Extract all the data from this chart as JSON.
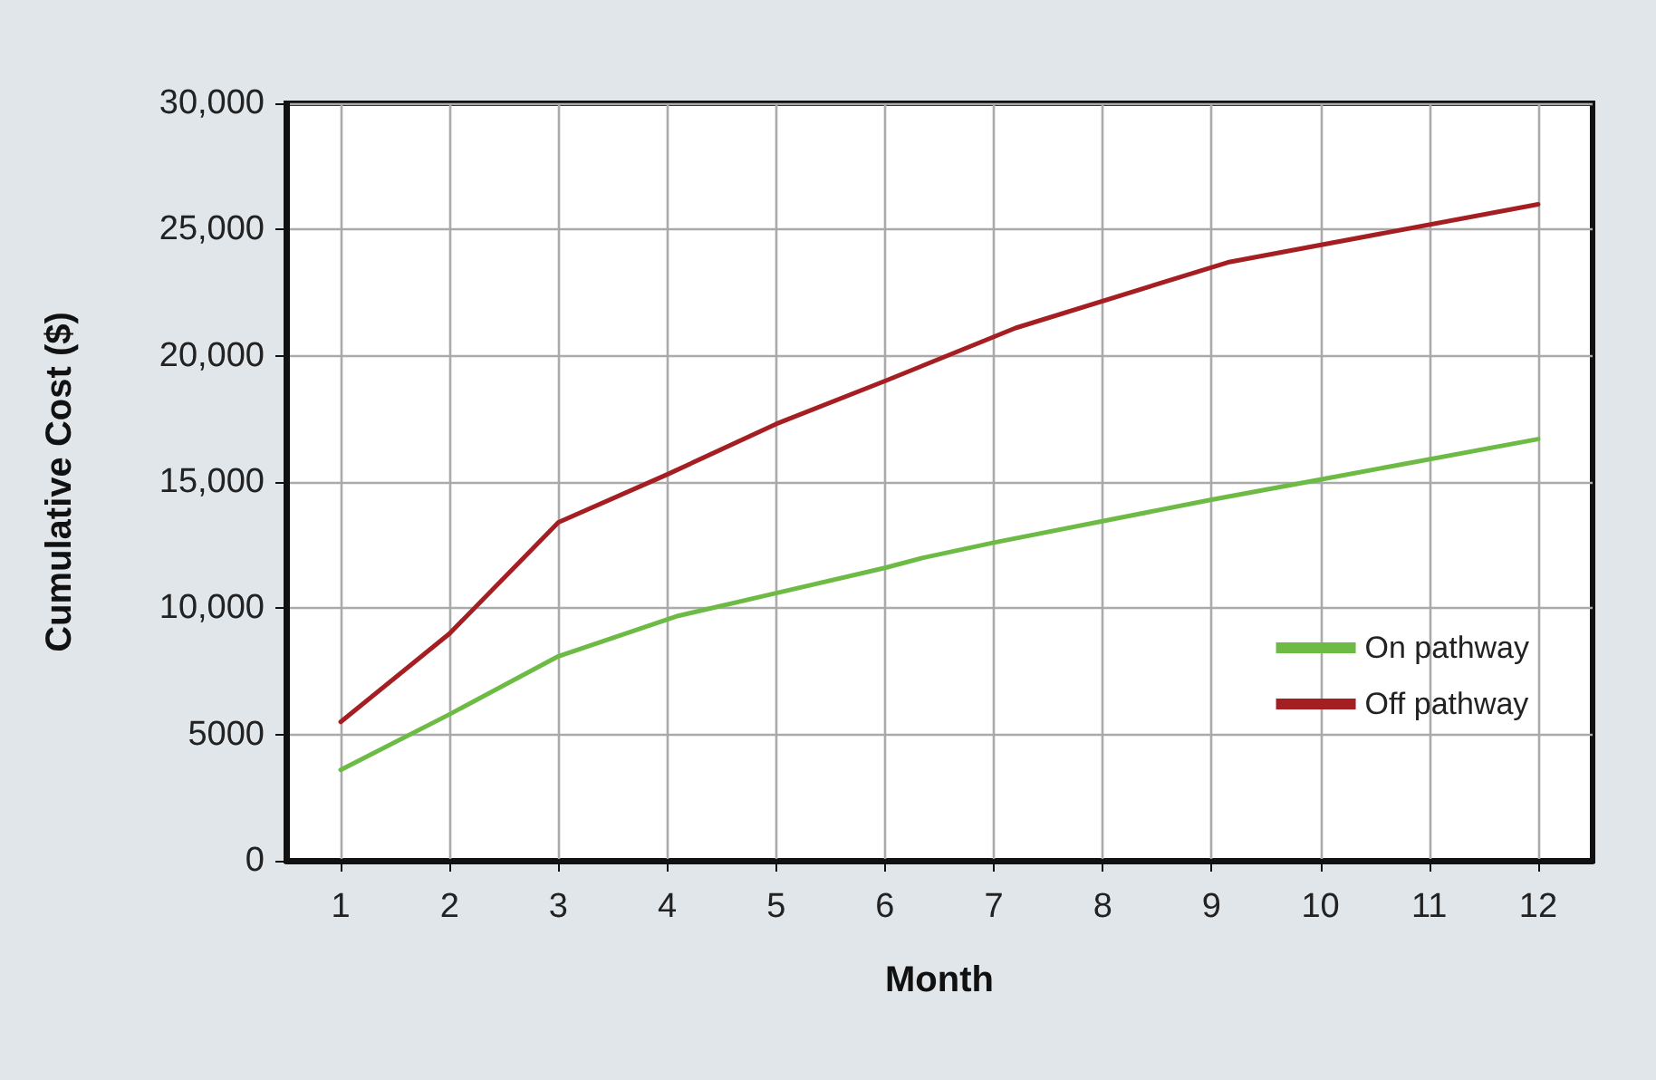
{
  "chart_data": {
    "type": "line",
    "xlabel": "Month",
    "ylabel": "Cumulative Cost ($)",
    "xlim": [
      0.5,
      12.5
    ],
    "xticks": [
      1,
      2,
      3,
      4,
      5,
      6,
      7,
      8,
      9,
      10,
      11,
      12
    ],
    "ylim": [
      0,
      30000
    ],
    "yticks": [
      0,
      5000,
      {
        "value": 10000,
        "label": "10,000"
      },
      {
        "value": 15000,
        "label": "15,000"
      },
      {
        "value": 20000,
        "label": "20,000"
      },
      {
        "value": 25000,
        "label": "25,000"
      },
      {
        "value": 30000,
        "label": "30,000"
      }
    ],
    "grid": true,
    "legend": "bottom right",
    "marker": "none",
    "line_style": "solid",
    "series": [
      {
        "name": "On pathway",
        "color": "#6dbb45",
        "x": [
          1,
          2,
          3,
          4.1,
          5,
          6,
          6.35,
          7,
          9,
          10,
          12
        ],
        "values": [
          3600,
          5800,
          8100,
          9700,
          10600,
          11600,
          12000,
          12600,
          14300,
          15100,
          16700
        ]
      },
      {
        "name": "Off pathway",
        "color": "#a51e22",
        "x": [
          1,
          2,
          3,
          4,
          5,
          6,
          7.2,
          9.15,
          12
        ],
        "values": [
          5500,
          9000,
          13400,
          15300,
          17300,
          19000,
          21100,
          23700,
          26000
        ]
      }
    ]
  }
}
